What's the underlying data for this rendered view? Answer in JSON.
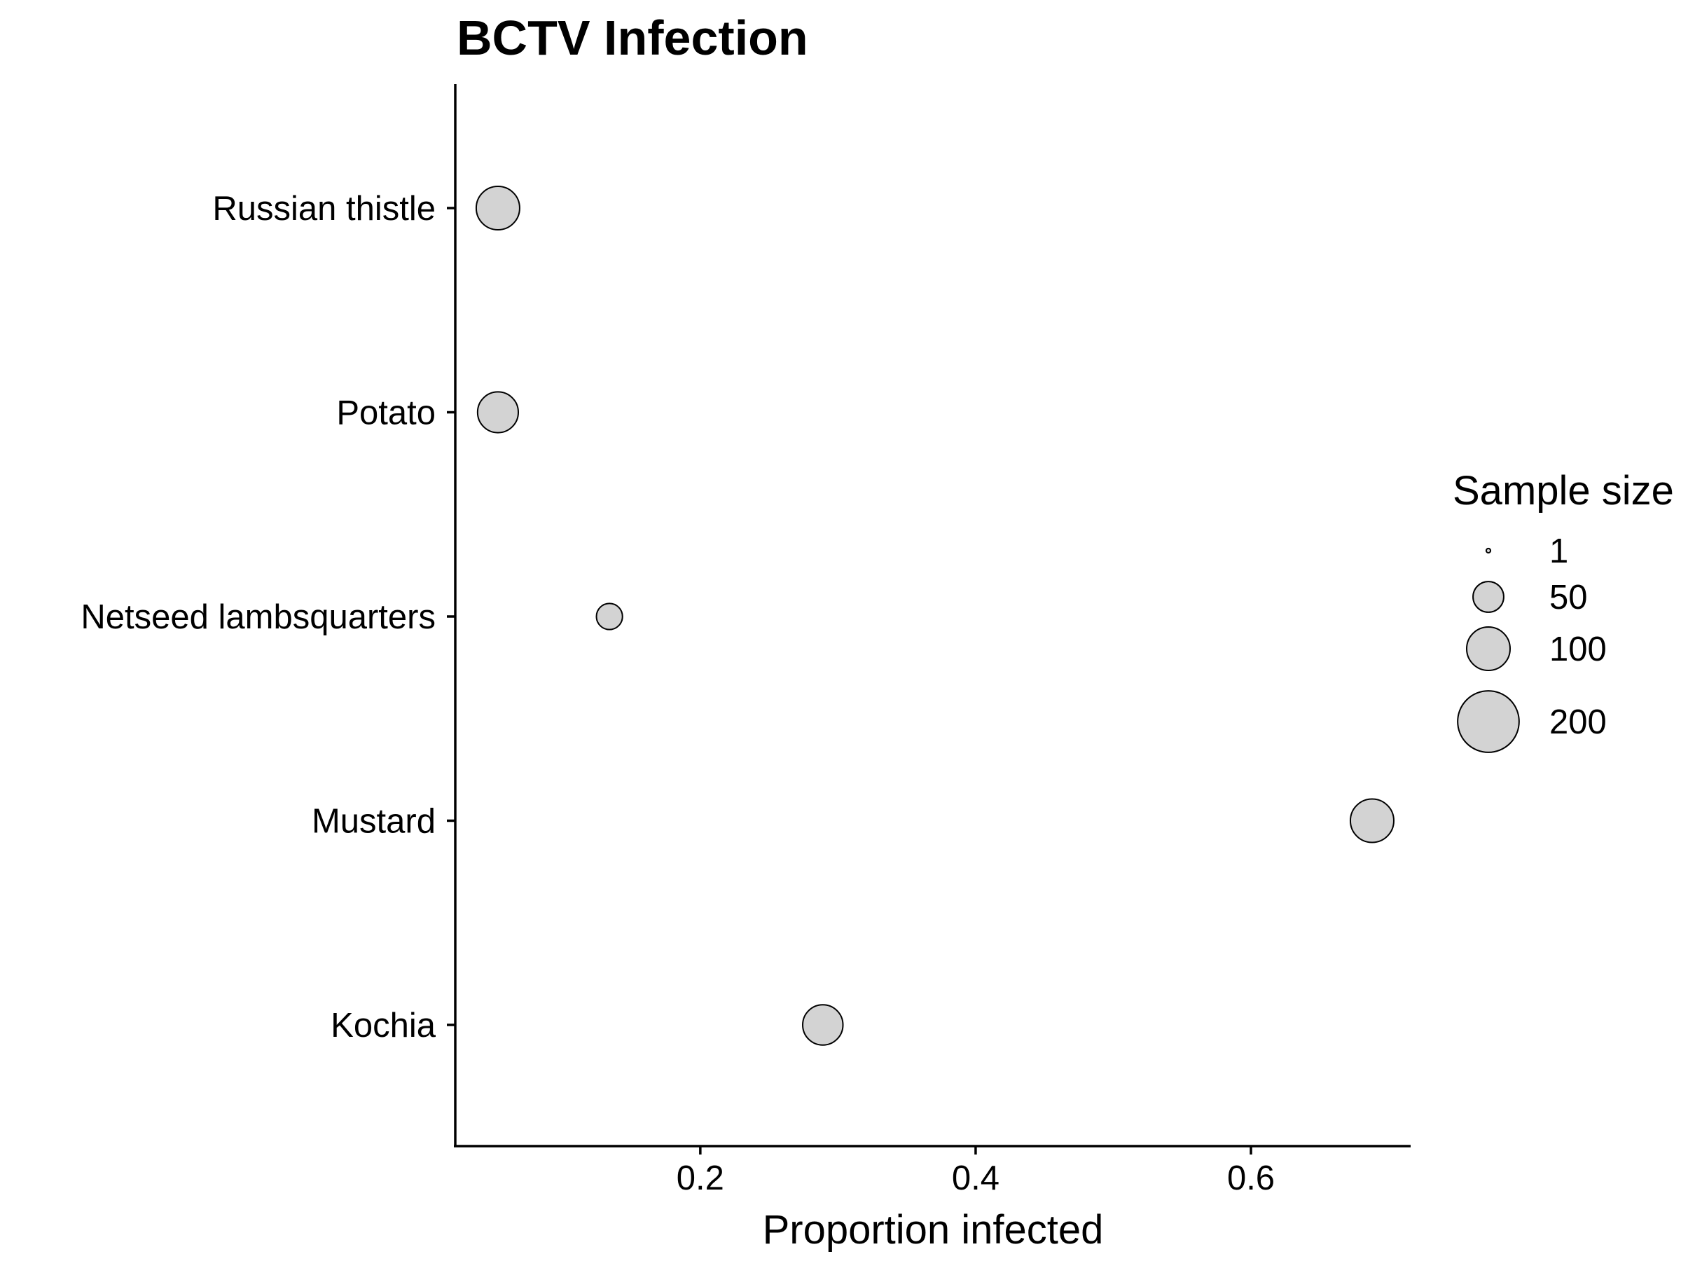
{
  "chart_data": {
    "type": "scatter",
    "title": "BCTV Infection",
    "xlabel": "Proportion infected",
    "ylabel": "",
    "xlim": [
      0.022,
      0.716
    ],
    "x_ticks": [
      0.2,
      0.4,
      0.6
    ],
    "x_tick_labels": [
      "0.2",
      "0.4",
      "0.6"
    ],
    "categories": [
      "Russian thistle",
      "Potato",
      "Netseed lambsquarters",
      "Mustard",
      "Kochia"
    ],
    "points": [
      {
        "category": "Russian thistle",
        "x": 0.053,
        "size": 100
      },
      {
        "category": "Potato",
        "x": 0.053,
        "size": 88
      },
      {
        "category": "Netseed lambsquarters",
        "x": 0.134,
        "size": 36
      },
      {
        "category": "Mustard",
        "x": 0.688,
        "size": 100
      },
      {
        "category": "Kochia",
        "x": 0.289,
        "size": 86
      }
    ],
    "size_legend": {
      "title": "Sample size",
      "entries": [
        {
          "label": "1",
          "value": 1
        },
        {
          "label": "50",
          "value": 50
        },
        {
          "label": "100",
          "value": 100
        },
        {
          "label": "200",
          "value": 200
        }
      ],
      "placement": "right"
    },
    "point_fill": "#d3d3d3",
    "point_stroke": "#000000",
    "grid": false
  }
}
